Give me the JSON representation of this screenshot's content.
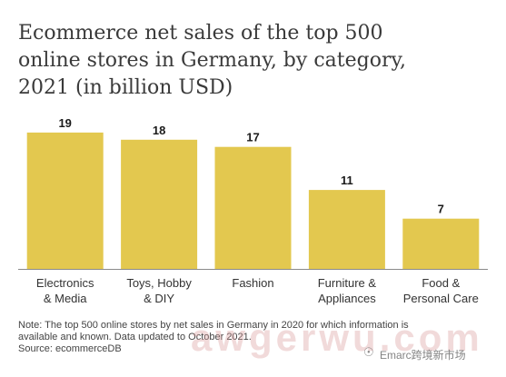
{
  "title_lines": [
    "Ecommerce net sales of the top 500",
    "online stores in Germany, by category,",
    "2021 (in billion USD)"
  ],
  "note_lines": [
    "Note: The top 500 online stores by net sales in Germany in 2020 for which information is",
    "available and known. Data updated to October 2021.",
    "Source: ecommerceDB"
  ],
  "watermark": {
    "main": "awgerwu.com",
    "secondary": "Emarc跨境新市场"
  },
  "colors": {
    "bar": "#e3c84f",
    "axis": "#8a8a8a",
    "text": "#333333"
  },
  "chart_data": {
    "type": "bar",
    "categories": [
      [
        "Electronics",
        "& Media"
      ],
      [
        "Toys, Hobby",
        "& DIY"
      ],
      [
        "Fashion"
      ],
      [
        "Furniture &",
        "Appliances"
      ],
      [
        "Food &",
        "Personal Care"
      ]
    ],
    "values": [
      19,
      18,
      17,
      11,
      7
    ],
    "ylim": [
      0,
      20
    ],
    "grid": false,
    "data_labels": true
  }
}
